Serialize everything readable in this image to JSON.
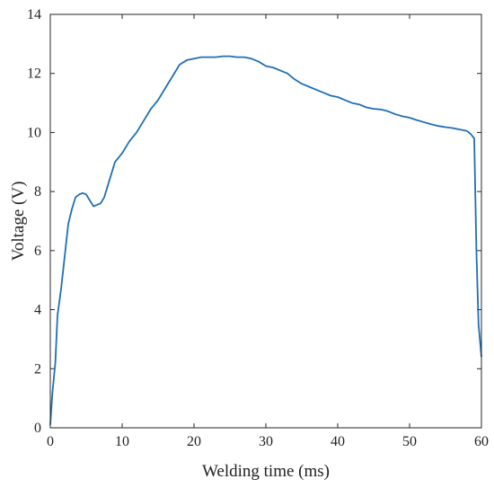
{
  "chart_data": {
    "type": "line",
    "title": "",
    "xlabel": "Welding time (ms)",
    "ylabel": "Voltage (V)",
    "xlim": [
      0,
      60
    ],
    "ylim": [
      0,
      14
    ],
    "xticks": [
      0,
      10,
      20,
      30,
      40,
      50,
      60
    ],
    "yticks": [
      0,
      2,
      4,
      6,
      8,
      10,
      12,
      14
    ],
    "grid": false,
    "line_color": "#1f6fb5",
    "series": [
      {
        "x": [
          0,
          0.3,
          0.7,
          1.0,
          1.5,
          2.0,
          2.5,
          3.0,
          3.5,
          4.0,
          4.5,
          5.0,
          5.5,
          6.0,
          6.5,
          7.0,
          7.5,
          8.0,
          8.5,
          9.0,
          10.0,
          11.0,
          12.0,
          13.0,
          14.0,
          15.0,
          16.0,
          17.0,
          18.0,
          19.0,
          20.0,
          21.0,
          22.0,
          23.0,
          24.0,
          25.0,
          26.0,
          27.0,
          28.0,
          29.0,
          30.0,
          31.0,
          32.0,
          33.0,
          34.0,
          35.0,
          36.0,
          37.0,
          38.0,
          39.0,
          40.0,
          41.0,
          42.0,
          43.0,
          44.0,
          45.0,
          46.0,
          47.0,
          48.0,
          49.0,
          50.0,
          51.0,
          52.0,
          53.0,
          54.0,
          55.0,
          56.0,
          57.0,
          58.0,
          58.5,
          59.0,
          59.3,
          59.6,
          60.0
        ],
        "y": [
          0.1,
          1.2,
          2.2,
          3.8,
          4.7,
          5.8,
          6.9,
          7.4,
          7.8,
          7.9,
          7.95,
          7.9,
          7.7,
          7.5,
          7.55,
          7.6,
          7.8,
          8.2,
          8.6,
          9.0,
          9.3,
          9.7,
          10.0,
          10.4,
          10.8,
          11.1,
          11.5,
          11.9,
          12.3,
          12.45,
          12.5,
          12.55,
          12.55,
          12.55,
          12.58,
          12.58,
          12.55,
          12.55,
          12.5,
          12.4,
          12.25,
          12.2,
          12.1,
          12.0,
          11.8,
          11.65,
          11.55,
          11.45,
          11.35,
          11.25,
          11.2,
          11.1,
          11.0,
          10.95,
          10.85,
          10.8,
          10.78,
          10.72,
          10.62,
          10.55,
          10.5,
          10.42,
          10.35,
          10.28,
          10.22,
          10.18,
          10.15,
          10.1,
          10.05,
          9.95,
          9.8,
          6.0,
          3.5,
          2.4
        ]
      }
    ]
  }
}
